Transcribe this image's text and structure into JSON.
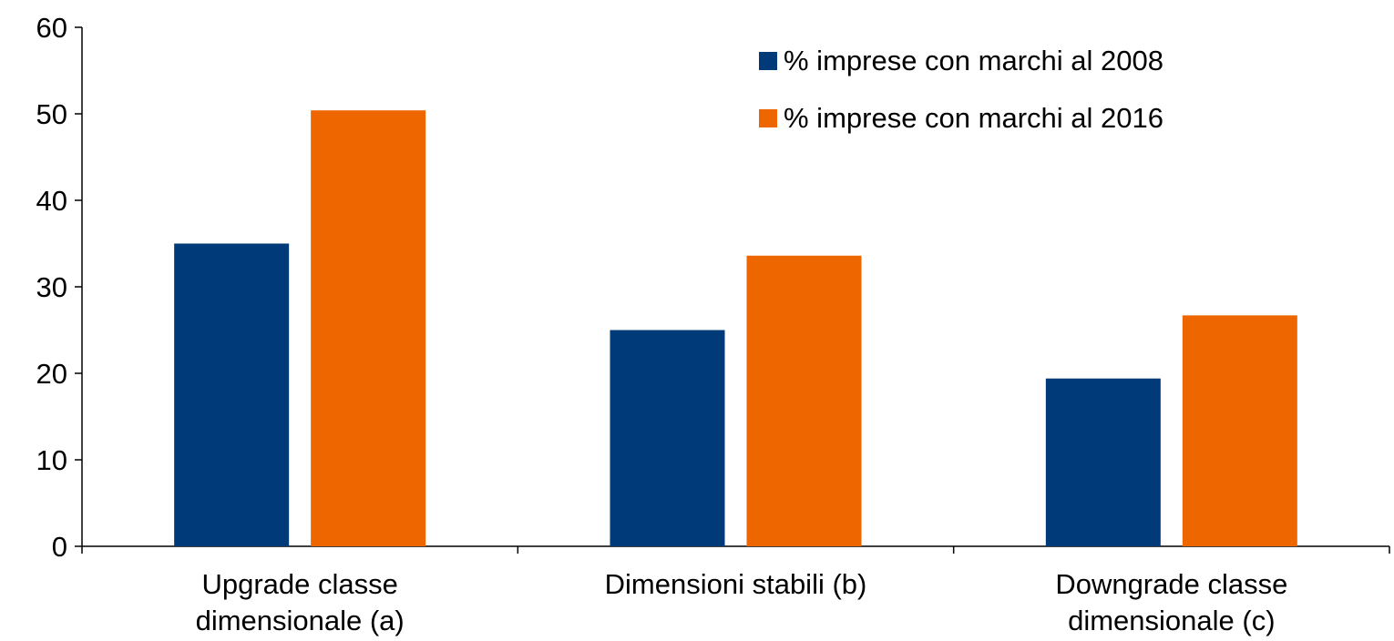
{
  "chart_data": {
    "type": "bar",
    "categories": [
      [
        "Upgrade classe",
        "dimensionale (a)"
      ],
      [
        "Dimensioni stabili (b)"
      ],
      [
        "Downgrade classe",
        "dimensionale (c)"
      ]
    ],
    "series": [
      {
        "name": "% imprese con marchi al 2008",
        "color": "#003A78",
        "values": [
          35.0,
          25.0,
          19.4
        ]
      },
      {
        "name": "% imprese con marchi al 2016",
        "color": "#EE6600",
        "values": [
          50.4,
          33.6,
          26.7
        ]
      }
    ],
    "ylim": [
      0,
      60
    ],
    "yticks": [
      "0",
      "10",
      "20",
      "30",
      "40",
      "50",
      "60"
    ],
    "title": "",
    "xlabel": "",
    "ylabel": "",
    "grid": false,
    "legend_position": "top-right"
  }
}
